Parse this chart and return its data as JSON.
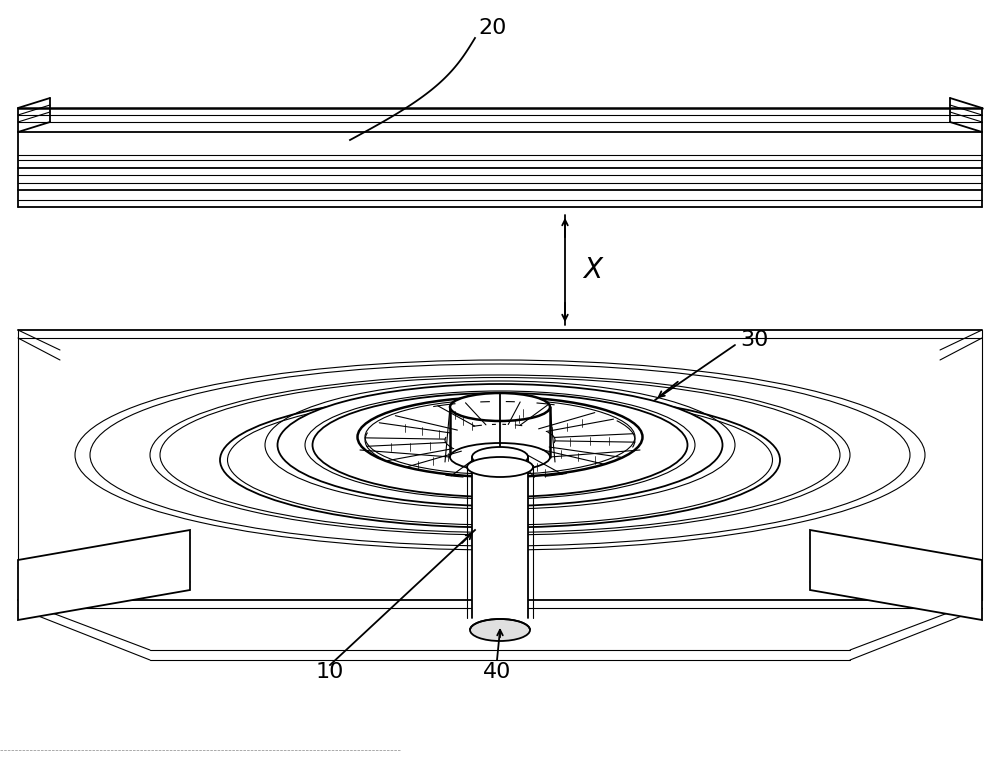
{
  "bg_color": "#ffffff",
  "line_color": "#000000",
  "fig_width": 10.0,
  "fig_height": 7.82,
  "label_20": "20",
  "label_30": "30",
  "label_10": "10",
  "label_40": "40",
  "label_X": "X"
}
